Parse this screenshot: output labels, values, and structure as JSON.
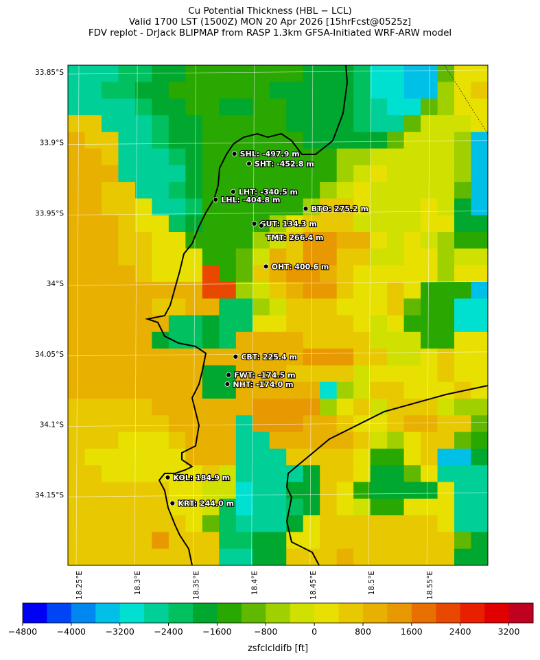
{
  "title": {
    "line1": "Cu Potential Thickness (HBL − LCL)",
    "line2": "Valid 1700 LST (1500Z) MON 20 Apr 2026 [15hrFcst@0525z]",
    "line3": "FDV replot - DrJack BLIPMAP from RASP 1.3km GFSA-Initiated WRF-ARW model"
  },
  "chart_data": {
    "type": "heatmap",
    "lon_ticks": [
      "18.25°E",
      "18.3°E",
      "18.35°E",
      "18.4°E",
      "18.45°E",
      "18.5°E",
      "18.55°E"
    ],
    "lon_values": [
      18.25,
      18.3,
      18.35,
      18.4,
      18.45,
      18.5,
      18.55
    ],
    "lat_ticks": [
      "33.85°S",
      "33.9°S",
      "33.95°S",
      "34°S",
      "34.05°S",
      "34.1°S",
      "34.15°S"
    ],
    "lat_values": [
      33.85,
      33.9,
      33.95,
      34.0,
      34.05,
      34.1,
      34.15
    ],
    "grid_note_levels": "letters a..u index colorbar bins from -4800 to 3600 ft",
    "grid": [
      "fffgghhiiiiiiihhhgeeddjmm",
      "ffgghhiiiiiihhhhhgeeddkmn",
      "ffffghhiihhiihhhhgfeejkmm",
      "nnfffghhiiiiihhhhgffjlllm",
      "onnffghhiiiiiihhhhhjlllkd",
      "oonfffghiiiiiiiikklllllkd",
      "oooffffhiiiiiiiiklmllllkd",
      "oonnffghiiiiiiiklmllllljd",
      "oonnmffgiiiiiiknnmlllmlhd",
      "ooonmmghiiiikmnnnllllmmhh",
      "ooonnmmiiiiklnppoomlmlkii",
      "ooonnmmmiijlonppnnllmmkll",
      "oooonmmmrijnopponmmmmmkmm",
      "oooooooorrklnoppnmmnmiiid",
      "ooooonnooggklnnnmmmnjiiee",
      "oooooogghggmmnnnnmlmiiiee",
      "ooooohgghgoooonnnnllliimm",
      "oooooooooooooopppnnllmnmm",
      "oooooooohhooonnnnlmmmmnmm",
      "oooooooohhoooooeklnnmmmnm",
      "nnnnnooooooppppkmnlnnnlkk",
      "nnnnnnoooofpppoonmmnoonnj",
      "nnnmmmnoooffooooonlkmnnji",
      "nmmmmmmooofffnnnnmiimnddh",
      "nnmmmmmmnlffffhnnmhhjmfff",
      "nnnnnnmmlleffhhnmihhhhmff",
      "nnnnnnmmlgeffghnmliimmmff",
      "nnnnnnnmjgfffhmnnnnnnnmff",
      "nnnnnpnnngghhmmnnnnnnnnjh",
      "nnnnnnnnnffhhnnnonnnnnnhh"
    ],
    "colorbar": {
      "label": "zsfclcldifb [ft]",
      "min": -4800,
      "max": 3600,
      "step": 400,
      "tick_labels": [
        "−4800",
        "−4000",
        "−3200",
        "−2400",
        "−1600",
        "−800",
        "0",
        "800",
        "1600",
        "2400",
        "3200"
      ],
      "colors": [
        "#0000f5",
        "#0045f5",
        "#0088f0",
        "#00c0e8",
        "#00e0d0",
        "#00d098",
        "#00c060",
        "#00a830",
        "#28a800",
        "#60b800",
        "#a0d000",
        "#d0e000",
        "#e8e000",
        "#e8c800",
        "#e8b000",
        "#e89800",
        "#e87000",
        "#e84800",
        "#e82000",
        "#e00000",
        "#c00020"
      ]
    },
    "stations": [
      {
        "name": "SHL",
        "value": "SHL: -497.9 m",
        "lon": 18.383,
        "lat": 33.908
      },
      {
        "name": "SHT",
        "value": "SHT: -452.8 m",
        "lon": 18.3955,
        "lat": 33.915
      },
      {
        "name": "LHT",
        "value": "LHT: -340.5 m",
        "lon": 18.382,
        "lat": 33.935
      },
      {
        "name": "LHL",
        "value": "LHL: -404.8 m",
        "lon": 18.367,
        "lat": 33.9406
      },
      {
        "name": "BTO",
        "value": "BTO: 275.2 m",
        "lon": 18.444,
        "lat": 33.947
      },
      {
        "name": "GUT",
        "value": "GUT: 134.3 m",
        "lon": 18.4,
        "lat": 33.9576
      },
      {
        "name": "TMT",
        "value": "TMT: 266.4 m",
        "lon": 18.406,
        "lat": 33.959,
        "label_below": true
      },
      {
        "name": "OHT",
        "value": "OHT: 400.6 m",
        "lon": 18.41,
        "lat": 33.988
      },
      {
        "name": "CBT",
        "value": "CBT: 225.4 m",
        "lon": 18.384,
        "lat": 34.052
      },
      {
        "name": "FWT",
        "value": "FWT: -174.5 m",
        "lon": 18.378,
        "lat": 34.065
      },
      {
        "name": "NHT",
        "value": "NHT: -174.0 m",
        "lon": 18.377,
        "lat": 34.0715
      },
      {
        "name": "KOL",
        "value": "KOL: 184.9 m",
        "lon": 18.326,
        "lat": 34.1377
      },
      {
        "name": "KRT",
        "value": "KRT: 244.0 m",
        "lon": 18.33,
        "lat": 34.156
      }
    ]
  }
}
